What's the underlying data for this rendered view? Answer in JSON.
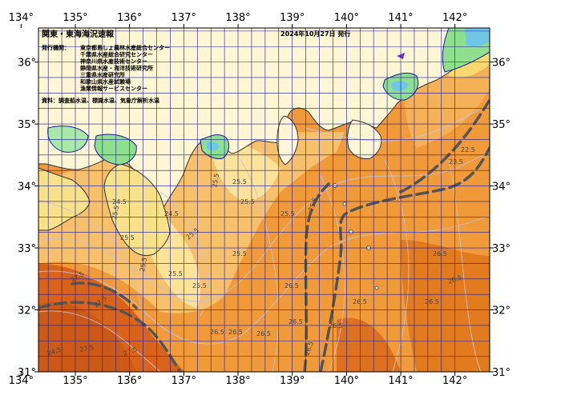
{
  "title": "関東・東海海況速報",
  "issue_date": "2024年10月27日 発行",
  "publisher_heading": "発行機関：",
  "publishers": [
    "東京都島しょ農林水産総合センター",
    "千葉県水産総合研究センター",
    "神奈川県水産技術センター",
    "静岡県水産・海洋技術研究所",
    "三重県水産研究所",
    "和歌山県水産試験場",
    "漁業情報サービスセンター"
  ],
  "sources": "資料：調査船水温、標識水温、気象庁解析水温",
  "longitude_labels": [
    "134°",
    "135°",
    "136°",
    "137°",
    "138°",
    "139°",
    "140°",
    "141°",
    "142°"
  ],
  "latitude_labels": [
    "31°",
    "32°",
    "33°",
    "34°",
    "35°",
    "36°"
  ],
  "contour_labels": [
    "27.5",
    "27.5",
    "27.5",
    "27.5",
    "26.5",
    "26.5",
    "26.5",
    "26.5",
    "26.5",
    "26.5",
    "26.5",
    "26.5",
    "26.5",
    "26.5",
    "26.5",
    "25.5",
    "25.5",
    "25.5",
    "25.5",
    "25.5",
    "25.5",
    "25.5",
    "25.5",
    "25.5",
    "25.5",
    "25.5",
    "25.5",
    "24.5",
    "24.5",
    "24.5",
    "22.5",
    "23.5"
  ],
  "colors": {
    "land": "#fff6d5",
    "land_outline": "#333333",
    "warm_sea": "#e27a1e",
    "hot_sea": "#d9631a",
    "mid_sea": "#f09a3a",
    "light_sea": "#f7c06a",
    "pale_sea": "#fbe39a",
    "cool_sea": "#f9d870",
    "grid": "#1a1a9a",
    "coast_water": "#8ee08e",
    "cold_water": "#6fc6e6",
    "kuroshio_axis": "#555555",
    "contour": "#c7c2d4"
  }
}
